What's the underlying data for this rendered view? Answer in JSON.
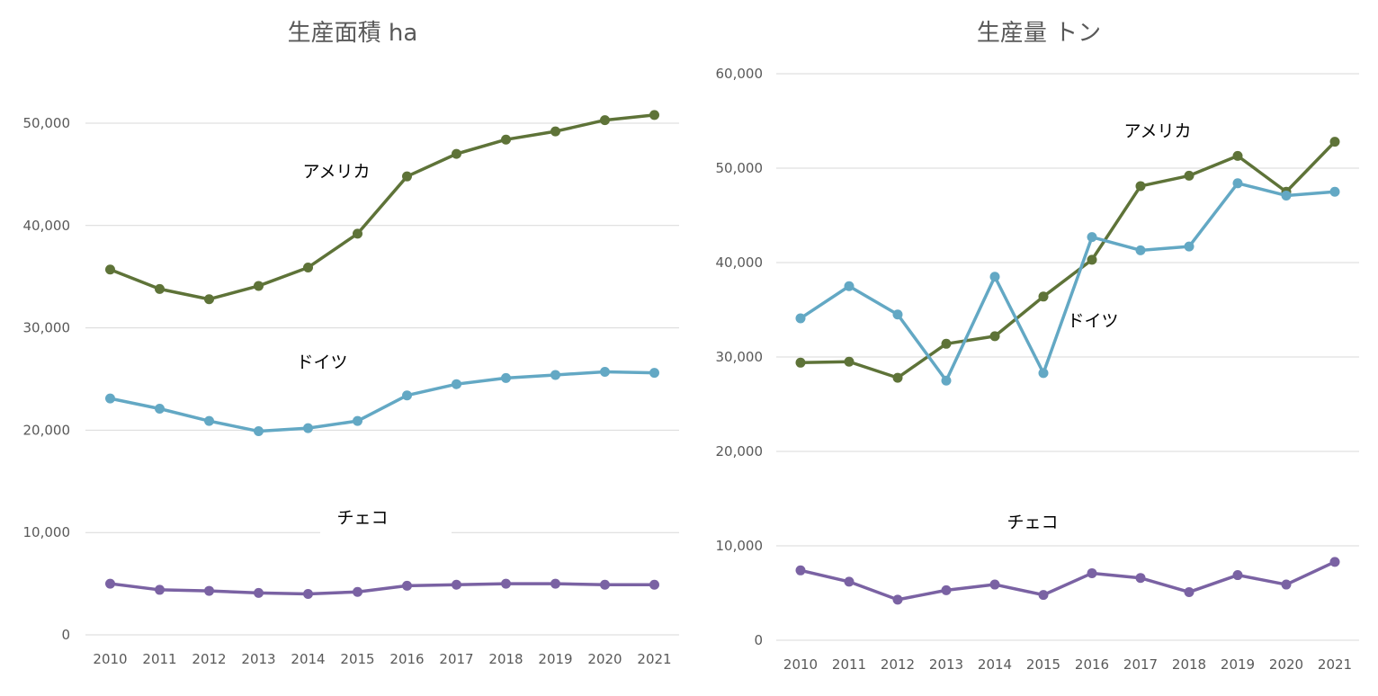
{
  "chart_data": [
    {
      "type": "line",
      "title": "生産面積 ha",
      "x": [
        "2010",
        "2011",
        "2012",
        "2013",
        "2014",
        "2015",
        "2016",
        "2017",
        "2018",
        "2019",
        "2020",
        "2021"
      ],
      "ylim": [
        0,
        55000
      ],
      "yticks": [
        0,
        10000,
        20000,
        30000,
        40000,
        50000
      ],
      "ytick_labels": [
        "0",
        "10,000",
        "20,000",
        "30,000",
        "40,000",
        "50,000"
      ],
      "grid": true,
      "series": [
        {
          "name": "アメリカ",
          "color": "#5e7338",
          "values": [
            35700,
            33800,
            32800,
            34100,
            35900,
            39200,
            44800,
            47000,
            48400,
            49200,
            50300,
            50800
          ]
        },
        {
          "name": "ドイツ",
          "color": "#63a8c4",
          "values": [
            23100,
            22100,
            20900,
            19900,
            20200,
            20900,
            23400,
            24500,
            25100,
            25400,
            25700,
            25600
          ]
        },
        {
          "name": "チェコ",
          "color": "#7a62a3",
          "values": [
            5000,
            4400,
            4300,
            4100,
            4000,
            4200,
            4800,
            4900,
            5000,
            5000,
            4900,
            4900
          ]
        }
      ]
    },
    {
      "type": "line",
      "title": "生産量 トン",
      "x": [
        "2010",
        "2011",
        "2012",
        "2013",
        "2014",
        "2015",
        "2016",
        "2017",
        "2018",
        "2019",
        "2020",
        "2021"
      ],
      "ylim": [
        0,
        60000
      ],
      "yticks": [
        0,
        10000,
        20000,
        30000,
        40000,
        50000,
        60000
      ],
      "ytick_labels": [
        "0",
        "10,000",
        "20,000",
        "30,000",
        "40,000",
        "50,000",
        "60,000"
      ],
      "grid": true,
      "series": [
        {
          "name": "アメリカ",
          "color": "#5e7338",
          "values": [
            29400,
            29500,
            27800,
            31400,
            32200,
            36400,
            40300,
            48100,
            49200,
            51300,
            47500,
            52800
          ]
        },
        {
          "name": "ドイツ",
          "color": "#63a8c4",
          "values": [
            34100,
            37500,
            34500,
            27500,
            38500,
            28300,
            42700,
            41300,
            41700,
            48400,
            47100,
            47500
          ]
        },
        {
          "name": "チェコ",
          "color": "#7a62a3",
          "values": [
            7400,
            6200,
            4300,
            5300,
            5900,
            4800,
            7100,
            6600,
            5100,
            6900,
            5900,
            8300
          ]
        }
      ]
    }
  ]
}
